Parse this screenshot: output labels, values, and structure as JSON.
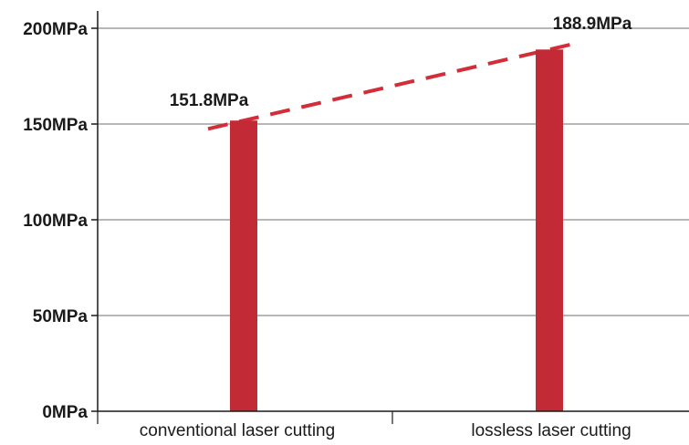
{
  "chart_data": {
    "type": "bar",
    "categories": [
      "conventional laser cutting",
      "lossless laser cutting"
    ],
    "values": [
      151.8,
      188.9
    ],
    "data_labels": [
      "151.8MPa",
      "188.9MPa"
    ],
    "unit": "MPa",
    "ylim": [
      0,
      200
    ],
    "yticks": [
      0,
      50,
      100,
      150,
      200
    ],
    "ytick_labels": [
      "0MPa",
      "50MPa",
      "100MPa",
      "150MPa",
      "200MPa"
    ],
    "grid": true,
    "trend_line": "dashed",
    "colors": {
      "bar": "#c22a35",
      "trend": "#d42d3a",
      "grid": "#8c8c8c",
      "axis": "#1a1a1a"
    }
  }
}
